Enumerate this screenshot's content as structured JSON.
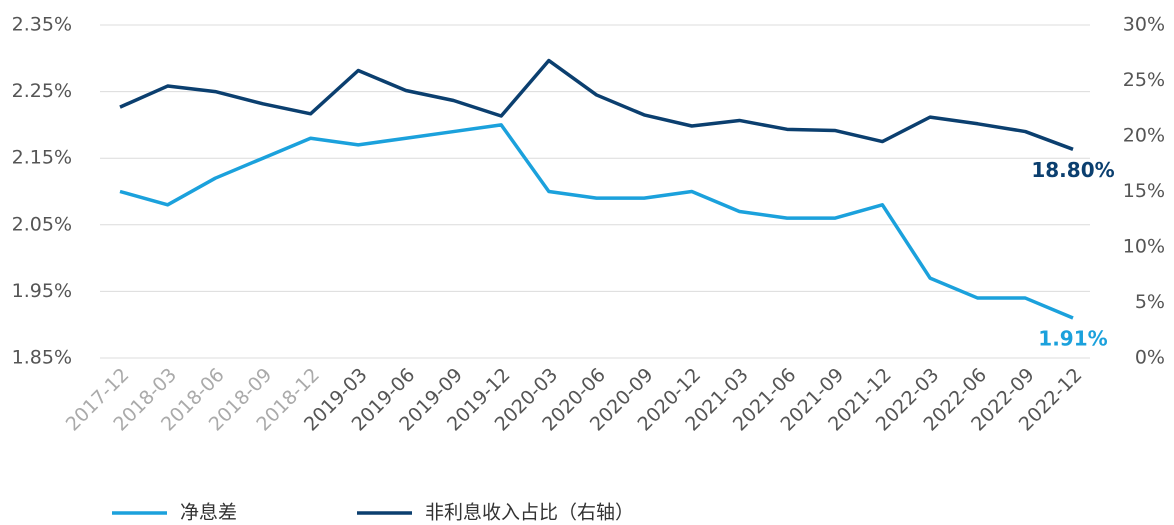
{
  "chart_data": {
    "type": "line",
    "categories": [
      "2017-12",
      "2018-03",
      "2018-06",
      "2018-09",
      "2018-12",
      "2019-03",
      "2019-06",
      "2019-09",
      "2019-12",
      "2020-03",
      "2020-06",
      "2020-09",
      "2020-12",
      "2021-03",
      "2021-06",
      "2021-09",
      "2021-12",
      "2022-03",
      "2022-06",
      "2022-09",
      "2022-12"
    ],
    "series": [
      {
        "name": "净息差",
        "color": "#1ba1dc",
        "values": [
          2.1,
          2.08,
          2.12,
          2.15,
          2.18,
          2.17,
          2.18,
          2.19,
          2.2,
          2.1,
          2.09,
          2.09,
          2.1,
          2.07,
          2.06,
          2.06,
          2.08,
          1.97,
          1.94,
          1.94,
          1.91
        ],
        "value_labels": [
          null,
          null,
          null,
          null,
          null,
          null,
          null,
          null,
          null,
          null,
          null,
          null,
          null,
          null,
          null,
          null,
          null,
          null,
          null,
          null,
          "1.91%"
        ]
      },
      {
        "name": "非利息收入占比（右轴）",
        "color": "#0b3f6f",
        "axis": "y2",
        "values": [
          22.6,
          24.5,
          24.0,
          22.9,
          22.0,
          25.9,
          24.1,
          23.2,
          21.8,
          26.8,
          23.7,
          21.9,
          20.9,
          21.4,
          20.6,
          20.5,
          19.5,
          21.7,
          21.1,
          20.4,
          18.8
        ],
        "value_labels": [
          null,
          null,
          null,
          null,
          null,
          null,
          null,
          null,
          null,
          null,
          null,
          null,
          null,
          null,
          null,
          null,
          null,
          null,
          null,
          null,
          "18.80%"
        ]
      }
    ],
    "ylim": [
      1.85,
      2.35
    ],
    "yticks": [
      {
        "value": 1.85,
        "label": "1.85%"
      },
      {
        "value": 1.95,
        "label": "1.95%"
      },
      {
        "value": 2.05,
        "label": "2.05%"
      },
      {
        "value": 2.15,
        "label": "2.15%"
      },
      {
        "value": 2.25,
        "label": "2.25%"
      },
      {
        "value": 2.35,
        "label": "2.35%"
      }
    ],
    "y2lim": [
      0,
      30
    ],
    "y2ticks": [
      {
        "value": 0,
        "label": "0%"
      },
      {
        "value": 5,
        "label": "5%"
      },
      {
        "value": 10,
        "label": "10%"
      },
      {
        "value": 15,
        "label": "15%"
      },
      {
        "value": 20,
        "label": "20%"
      },
      {
        "value": 25,
        "label": "25%"
      },
      {
        "value": 30,
        "label": "30%"
      }
    ],
    "grid": true,
    "legend": "bottom"
  }
}
